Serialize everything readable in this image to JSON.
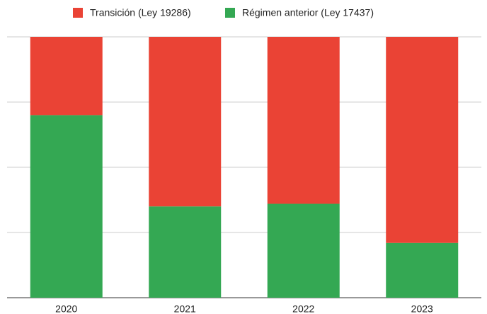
{
  "chart_data": {
    "type": "bar",
    "stacked": true,
    "categories": [
      "2020",
      "2021",
      "2022",
      "2023"
    ],
    "series": [
      {
        "name": "Transición (Ley 19286)",
        "color": "#ea4335",
        "values": [
          30,
          65,
          64,
          79
        ]
      },
      {
        "name": "Régimen anterior (Ley 17437)",
        "color": "#34a853",
        "values": [
          70,
          35,
          36,
          21
        ]
      }
    ],
    "ylim": [
      0,
      100
    ],
    "yticks": [
      0,
      25,
      50,
      75,
      100
    ],
    "grid": true,
    "legend": "top"
  }
}
